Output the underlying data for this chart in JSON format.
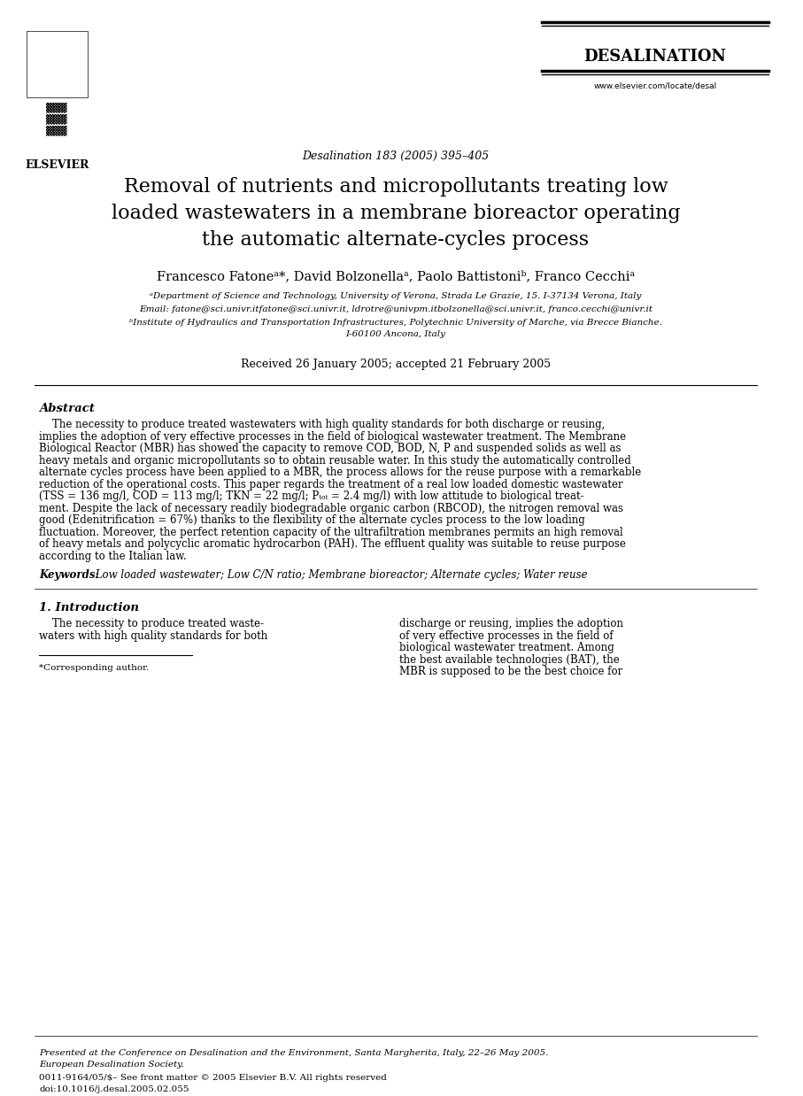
{
  "bg_color": "#ffffff",
  "title_line1": "Removal of nutrients and micropollutants treating low",
  "title_line2": "loaded wastewaters in a membrane bioreactor operating",
  "title_line3": "the automatic alternate-cycles process",
  "journal_name": "DESALINATION",
  "journal_ref": "Desalination 183 (2005) 395–405",
  "journal_url": "www.elsevier.com/locate/desal",
  "authors": "Francesco Fatoneᵃ*, David Bolzonellaᵃ, Paolo Battistoniᵇ, Franco Cecchiᵃ",
  "affil_a": "ᵃDepartment of Science and Technology, University of Verona, Strada Le Grazie, 15. I-37134 Verona, Italy",
  "affil_email": "Email: fatone@sci.univr.itfatone@sci.univr.it, ldrotre@univpm.itbolzonella@sci.univr.it, franco.cecchi@univr.it",
  "affil_b": "ᵇInstitute of Hydraulics and Transportation Infrastructures, Polytechnic University of Marche, via Brecce Bianche.",
  "affil_b2": "I-60100 Ancona, Italy",
  "received": "Received 26 January 2005; accepted 21 February 2005",
  "abstract_title": "Abstract",
  "abstract_text": "    The necessity to produce treated wastewaters with high quality standards for both discharge or reusing, implies the adoption of very effective processes in the field of biological wastewater treatment. The Membrane Biological Reactor (MBR) has showed the capacity to remove COD, BOD, N, P and suspended solids as well as heavy metals and organic micropollutants so to obtain reusable water. In this study the automatically controlled alternate cycles process have been applied to a MBR, the process allows for the reuse purpose with a remarkable reduction of the operational costs. This paper regards the treatment of a real low loaded domestic wastewater (TSS = 136 mg/l, COD = 113 mg/l; TKN = 22 mg/l; Pₜₒₜ = 2.4 mg/l) with low attitude to biological treatment. Despite the lack of necessary readily biodegradable organic carbon (RBCOD), the nitrogen removal was good (Edenitrification = 67%) thanks to the flexibility of the alternate cycles process to the low loading fluctuation. Moreover, the perfect retention capacity of the ultrafiltration membranes permits an high removal of heavy metals and polycyclic aromatic hydrocarbon (PAH). The effluent quality was suitable to reuse purpose according to the Italian law.",
  "keywords_label": "Keywords:",
  "keywords_text": " Low loaded wastewater; Low C/N ratio; Membrane bioreactor; Alternate cycles; Water reuse",
  "section1_title": "1. Introduction",
  "section1_col1": "    The necessity to produce treated waste-\nwaters with high quality standards for both",
  "section1_col2": "discharge or reusing, implies the adoption\nof very effective processes in the field of\nbiological wastewater treatment. Among\nthe best available technologies (BAT), the\nMBR is supposed to be the best choice for",
  "footnote_corresponding": "*Corresponding author.",
  "footnote_conf": "Presented at the Conference on Desalination and the Environment, Santa Margherita, Italy, 22–26 May 2005.",
  "footnote_conf2": "European Desalination Society.",
  "footnote_issn": "0011-9164/05/$– See front matter © 2005 Elsevier B.V. All rights reserved",
  "footnote_doi": "doi:10.1016/j.desal.2005.02.055"
}
